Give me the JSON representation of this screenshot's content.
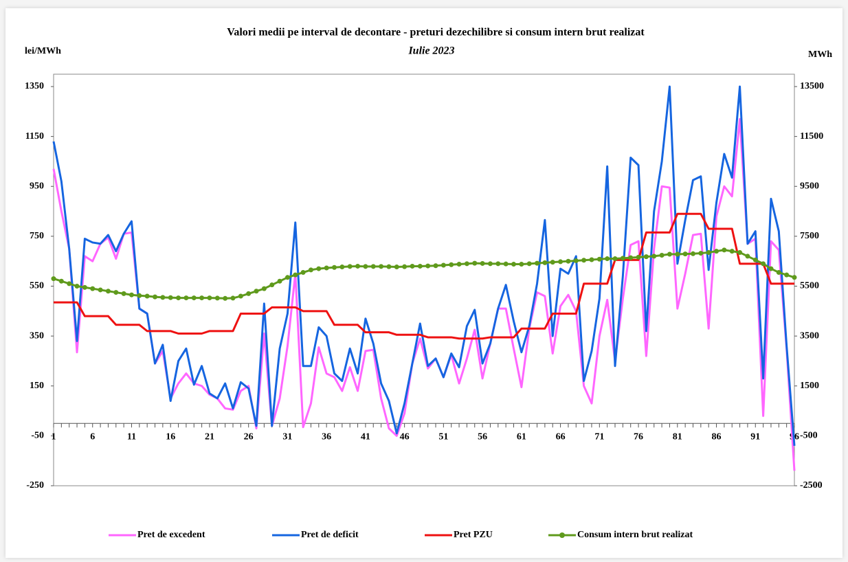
{
  "chart_data": {
    "type": "line",
    "title": "Valori medii pe interval de decontare - preturi dezechilibre si consum intern brut realizat",
    "subtitle": "Iulie 2023",
    "y_label": "lei/MWh",
    "y2_label": "MWh",
    "x": [
      1,
      2,
      3,
      4,
      5,
      6,
      7,
      8,
      9,
      10,
      11,
      12,
      13,
      14,
      15,
      16,
      17,
      18,
      19,
      20,
      21,
      22,
      23,
      24,
      25,
      26,
      27,
      28,
      29,
      30,
      31,
      32,
      33,
      34,
      35,
      36,
      37,
      38,
      39,
      40,
      41,
      42,
      43,
      44,
      45,
      46,
      47,
      48,
      49,
      50,
      51,
      52,
      53,
      54,
      55,
      56,
      57,
      58,
      59,
      60,
      61,
      62,
      63,
      64,
      65,
      66,
      67,
      68,
      69,
      70,
      71,
      72,
      73,
      74,
      75,
      76,
      77,
      78,
      79,
      80,
      81,
      82,
      83,
      84,
      85,
      86,
      87,
      88,
      89,
      90,
      91,
      92,
      93,
      94,
      95,
      96
    ],
    "xlim": [
      1,
      96
    ],
    "xticks": [
      1,
      6,
      11,
      16,
      21,
      26,
      31,
      36,
      41,
      46,
      51,
      56,
      61,
      66,
      71,
      76,
      81,
      86,
      91,
      96
    ],
    "ylim": [
      -250,
      1350
    ],
    "yticks": [
      -250,
      -50,
      150,
      350,
      550,
      750,
      950,
      1150,
      1350
    ],
    "y2lim": [
      -2500,
      13500
    ],
    "y2ticks": [
      -2500,
      -500,
      1500,
      3500,
      5500,
      7500,
      9500,
      11500,
      13500
    ],
    "legend": "bottom",
    "series": [
      {
        "name": "Pret de excedent",
        "color": "#ff66ff",
        "values": [
          1020,
          850,
          700,
          285,
          670,
          650,
          720,
          745,
          660,
          760,
          765,
          460,
          440,
          240,
          290,
          100,
          160,
          200,
          160,
          150,
          115,
          100,
          60,
          55,
          130,
          150,
          -20,
          360,
          -10,
          100,
          310,
          600,
          -15,
          80,
          305,
          200,
          185,
          130,
          225,
          130,
          290,
          295,
          100,
          -20,
          -50,
          40,
          240,
          340,
          220,
          260,
          185,
          275,
          160,
          260,
          375,
          180,
          320,
          460,
          460,
          300,
          145,
          380,
          525,
          510,
          280,
          470,
          515,
          450,
          150,
          80,
          350,
          495,
          250,
          500,
          715,
          730,
          270,
          700,
          950,
          945,
          460,
          600,
          755,
          760,
          380,
          830,
          950,
          910,
          1220,
          720,
          740,
          30,
          730,
          695,
          300,
          -190
        ]
      },
      {
        "name": "Pret de deficit",
        "color": "#1565e0",
        "values": [
          1130,
          970,
          700,
          330,
          740,
          725,
          720,
          755,
          690,
          760,
          810,
          460,
          440,
          240,
          315,
          90,
          250,
          300,
          155,
          230,
          120,
          100,
          160,
          60,
          165,
          140,
          -10,
          480,
          -10,
          300,
          440,
          805,
          230,
          230,
          385,
          350,
          200,
          170,
          300,
          200,
          420,
          320,
          160,
          90,
          -40,
          80,
          240,
          400,
          230,
          260,
          185,
          280,
          225,
          390,
          455,
          240,
          320,
          460,
          555,
          410,
          285,
          390,
          560,
          815,
          350,
          620,
          600,
          670,
          170,
          290,
          500,
          1030,
          230,
          590,
          1065,
          1035,
          370,
          850,
          1050,
          1350,
          640,
          815,
          975,
          990,
          615,
          885,
          1080,
          985,
          1350,
          720,
          770,
          180,
          900,
          770,
          310,
          -90
        ]
      },
      {
        "name": "Pret PZU",
        "color": "#ee1111",
        "values": [
          485,
          485,
          485,
          485,
          430,
          430,
          430,
          430,
          395,
          395,
          395,
          395,
          370,
          370,
          370,
          370,
          360,
          360,
          360,
          360,
          370,
          370,
          370,
          370,
          440,
          440,
          440,
          440,
          465,
          465,
          465,
          465,
          450,
          450,
          450,
          450,
          395,
          395,
          395,
          395,
          365,
          365,
          365,
          365,
          355,
          355,
          355,
          355,
          345,
          345,
          345,
          345,
          340,
          340,
          340,
          340,
          345,
          345,
          345,
          345,
          380,
          380,
          380,
          380,
          440,
          440,
          440,
          440,
          560,
          560,
          560,
          560,
          655,
          655,
          655,
          655,
          765,
          765,
          765,
          765,
          840,
          840,
          840,
          840,
          780,
          780,
          780,
          780,
          640,
          640,
          640,
          640,
          560,
          560,
          560,
          560
        ]
      },
      {
        "name": "Consum intern brut realizat",
        "color": "#5f9a1c",
        "axis": "y2",
        "marker": true,
        "values": [
          5800,
          5700,
          5600,
          5500,
          5450,
          5400,
          5350,
          5300,
          5250,
          5200,
          5150,
          5120,
          5100,
          5070,
          5050,
          5040,
          5030,
          5030,
          5030,
          5030,
          5030,
          5020,
          5010,
          5020,
          5100,
          5200,
          5300,
          5400,
          5550,
          5700,
          5850,
          5950,
          6050,
          6150,
          6200,
          6230,
          6250,
          6270,
          6290,
          6300,
          6290,
          6290,
          6290,
          6280,
          6270,
          6280,
          6300,
          6300,
          6310,
          6320,
          6340,
          6360,
          6380,
          6400,
          6420,
          6410,
          6400,
          6400,
          6390,
          6380,
          6380,
          6400,
          6420,
          6440,
          6460,
          6480,
          6500,
          6520,
          6540,
          6560,
          6580,
          6600,
          6600,
          6620,
          6640,
          6660,
          6680,
          6700,
          6740,
          6780,
          6780,
          6790,
          6800,
          6820,
          6850,
          6900,
          6950,
          6900,
          6850,
          6700,
          6550,
          6400,
          6200,
          6050,
          5950,
          5850
        ]
      }
    ]
  }
}
